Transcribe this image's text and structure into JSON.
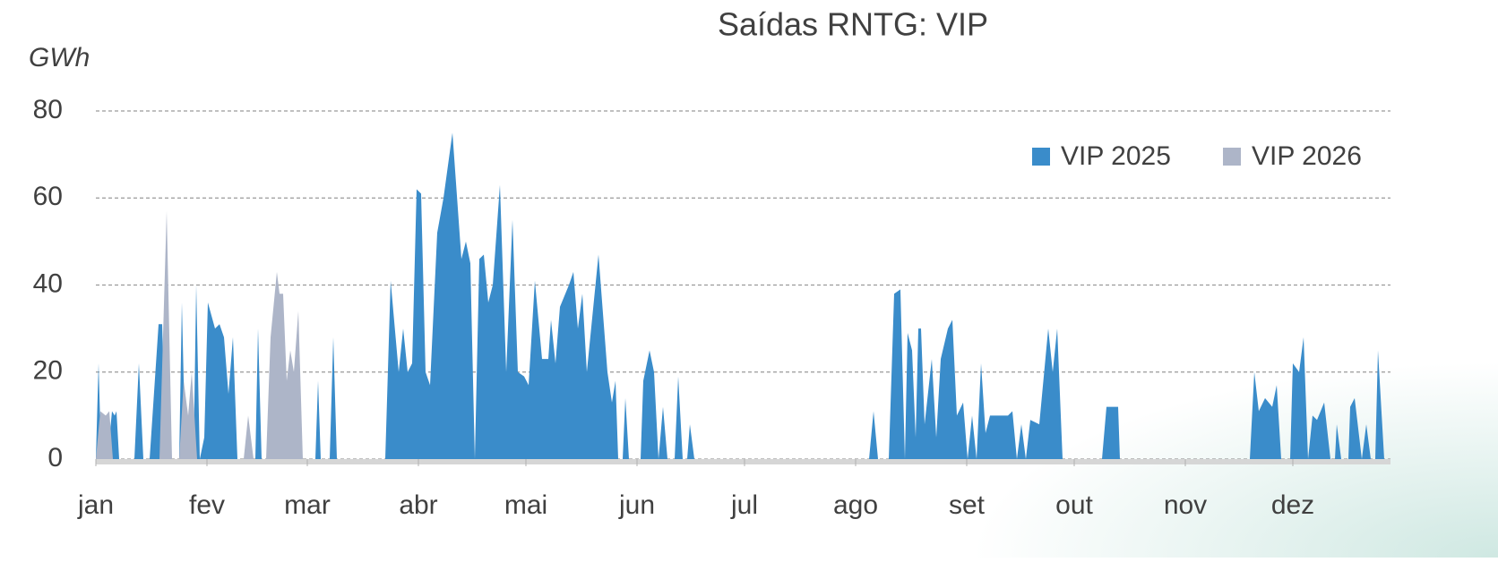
{
  "chart_data": {
    "type": "area",
    "title": "Saídas RNTG: VIP",
    "ylabel": "GWh",
    "xlim": [
      0,
      360
    ],
    "ylim": [
      0,
      80
    ],
    "yticks": [
      0,
      20,
      40,
      60,
      80
    ],
    "grid": true,
    "legend": "upper right",
    "xticks": [
      {
        "value": 0,
        "label": "jan"
      },
      {
        "value": 31,
        "label": "fev"
      },
      {
        "value": 59,
        "label": "mar"
      },
      {
        "value": 90,
        "label": "abr"
      },
      {
        "value": 120,
        "label": "mai"
      },
      {
        "value": 151,
        "label": "jun"
      },
      {
        "value": 181,
        "label": "jul"
      },
      {
        "value": 212,
        "label": "ago"
      },
      {
        "value": 243,
        "label": "set"
      },
      {
        "value": 273,
        "label": "out"
      },
      {
        "value": 304,
        "label": "nov"
      },
      {
        "value": 334,
        "label": "dez"
      }
    ],
    "series": [
      {
        "name": "VIP 2025",
        "color": "#3a8cca",
        "x": [
          0,
          0.75,
          1.5,
          3.25,
          4.5,
          5.25,
          5.75,
          6.5,
          10.75,
          12,
          13.25,
          15,
          17.5,
          18.5,
          19.5,
          23.25,
          24,
          25,
          27.25,
          28,
          29,
          30.25,
          31.25,
          33.25,
          34.5,
          35.75,
          37,
          38.25,
          39.5,
          44.5,
          45.25,
          46.25,
          61.25,
          62,
          62.75,
          65.25,
          66.25,
          67.25,
          80.75,
          82.25,
          84.5,
          85.75,
          87,
          88.25,
          89.5,
          90.75,
          92,
          93.25,
          95.25,
          97,
          99.5,
          102,
          103.25,
          104.5,
          105.75,
          107,
          108.25,
          109.5,
          110.75,
          112.75,
          114.5,
          116.25,
          117.75,
          119.5,
          120.75,
          122.5,
          124.5,
          126.25,
          127,
          128.25,
          129.5,
          132,
          133.25,
          134.5,
          135.75,
          137,
          140.25,
          142.75,
          144,
          145,
          145.75,
          147,
          147.75,
          148.75,
          152,
          152.75,
          154.5,
          155.75,
          157,
          158.25,
          159.5,
          161.5,
          162.5,
          163.75,
          165,
          165.75,
          167,
          215.75,
          217,
          218.25,
          221.25,
          222.75,
          224.5,
          225.75,
          226.5,
          227.75,
          228.75,
          229.5,
          230.25,
          231.25,
          233.25,
          234.5,
          235.75,
          237.75,
          239,
          240.25,
          242,
          243.25,
          244.5,
          245.75,
          247,
          248.25,
          249.5,
          252,
          254.5,
          255.75,
          257,
          258.25,
          259.5,
          260.75,
          263.25,
          265.75,
          267,
          268.25,
          269.75,
          280.75,
          282,
          285.25,
          285.75,
          322,
          323.25,
          324.5,
          326.25,
          328.25,
          329.5,
          330.75,
          333.25,
          334,
          335.75,
          337,
          338.25,
          339.5,
          340.75,
          342.75,
          344.5,
          345.75,
          346.25,
          347.5,
          349.5,
          350,
          351.25,
          353.25,
          354.5,
          355.75,
          357,
          357.75,
          359.5
        ],
        "values": [
          0,
          22,
          0,
          0,
          11,
          10,
          11,
          0,
          0,
          22,
          0,
          0,
          31,
          31,
          0,
          0,
          36,
          0,
          0,
          40,
          0,
          5,
          36,
          30,
          31,
          28,
          15,
          28,
          0,
          0,
          30,
          0,
          0,
          18,
          0,
          0,
          28,
          0,
          0,
          41,
          20,
          30,
          20,
          22,
          62,
          61,
          20,
          17,
          52,
          60,
          75,
          46,
          50,
          45,
          0,
          46,
          47,
          36,
          40,
          63,
          20,
          55,
          20,
          19,
          17,
          41,
          23,
          23,
          32,
          22,
          35,
          40,
          43,
          30,
          38,
          20,
          47,
          20,
          13,
          18,
          0,
          0,
          14,
          0,
          0,
          18,
          25,
          20,
          0,
          12,
          0,
          0,
          19,
          0,
          0,
          8,
          0,
          0,
          11,
          0,
          0,
          38,
          39,
          0,
          29,
          25,
          5,
          30,
          30,
          8,
          23,
          5,
          23,
          30,
          32,
          10,
          13,
          0,
          10,
          0,
          22,
          6,
          10,
          10,
          10,
          11,
          0,
          8,
          0,
          9,
          8,
          30,
          20,
          30,
          0,
          0,
          12,
          12,
          0,
          0,
          20,
          11,
          14,
          12,
          17,
          0,
          0,
          22,
          20,
          28,
          0,
          10,
          9,
          13,
          0,
          0,
          8,
          0,
          0,
          12,
          14,
          0,
          8,
          0,
          0,
          25,
          0
        ]
      },
      {
        "name": "VIP 2026",
        "color": "#adb5c8",
        "x": [
          0,
          1.25,
          2.75,
          3.75,
          4.75,
          17.75,
          19.75,
          21.25,
          23.25,
          24.5,
          25.75,
          26.75,
          28.25,
          41.25,
          42.5,
          44,
          47.5,
          48.75,
          50.5,
          51.25,
          52.25,
          53.25,
          54.25,
          55.25,
          56.5,
          57.75
        ],
        "values": [
          0,
          11,
          10,
          11,
          0,
          0,
          57,
          0,
          0,
          18,
          10,
          20,
          0,
          0,
          10,
          0,
          0,
          28,
          43,
          38,
          38,
          18,
          25,
          20,
          34,
          0
        ]
      }
    ]
  }
}
